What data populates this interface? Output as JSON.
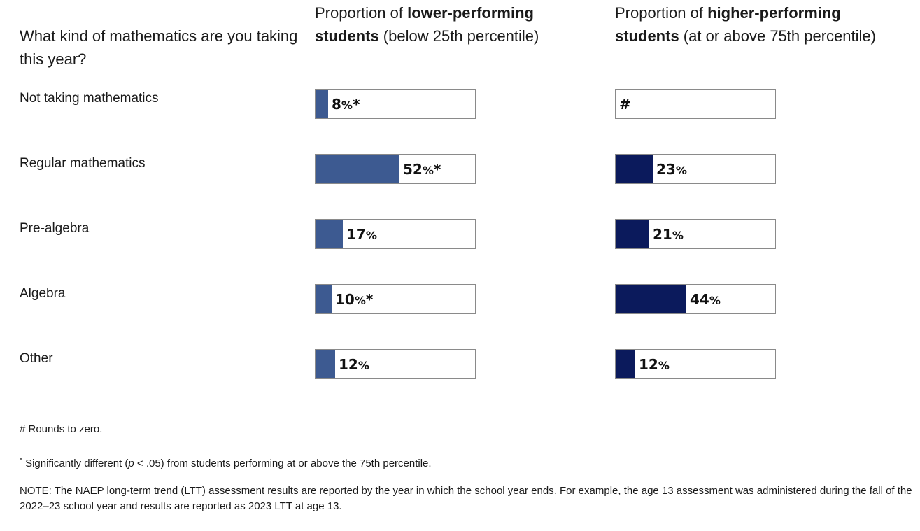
{
  "question": "What kind of mathematics are you taking this year?",
  "columns": [
    {
      "prefix": "Proportion of ",
      "bold": "lower-performing students",
      "suffix": " (below 25th percentile)"
    },
    {
      "prefix": "Proportion of ",
      "bold": "higher-performing students",
      "suffix": " (at or above 75th percentile)"
    }
  ],
  "colors": {
    "lower": "#3d5a91",
    "higher": "#0b1a5c"
  },
  "chart_data": {
    "type": "bar",
    "categories": [
      "Not taking mathematics",
      "Regular mathematics",
      "Pre-algebra",
      "Algebra",
      "Other"
    ],
    "series": [
      {
        "name": "lower-performing students (below 25th percentile)",
        "values": [
          8,
          52,
          17,
          10,
          12
        ],
        "labels": [
          "8",
          "52",
          "17",
          "10",
          "12"
        ],
        "significant": [
          true,
          true,
          false,
          true,
          false
        ]
      },
      {
        "name": "higher-performing students (at or above 75th percentile)",
        "values": [
          0,
          23,
          21,
          44,
          12
        ],
        "labels": [
          "#",
          "23",
          "21",
          "44",
          "12"
        ],
        "significant": [
          false,
          false,
          false,
          false,
          false
        ]
      }
    ],
    "xlim": [
      0,
      100
    ],
    "percent_sign": "%",
    "significance_mark": "*"
  },
  "footnotes": {
    "rounds": "# Rounds to zero.",
    "sig_mark": "*",
    "sig_before": "Significantly different (",
    "sig_p": "p",
    "sig_after": " < .05) from students performing at or above the 75th percentile.",
    "note": "NOTE: The NAEP long-term trend (LTT) assessment results are reported by the year in which the school year ends. For example, the age 13 assessment was administered during the fall of the 2022–23 school year and results are reported as 2023 LTT at age 13."
  }
}
